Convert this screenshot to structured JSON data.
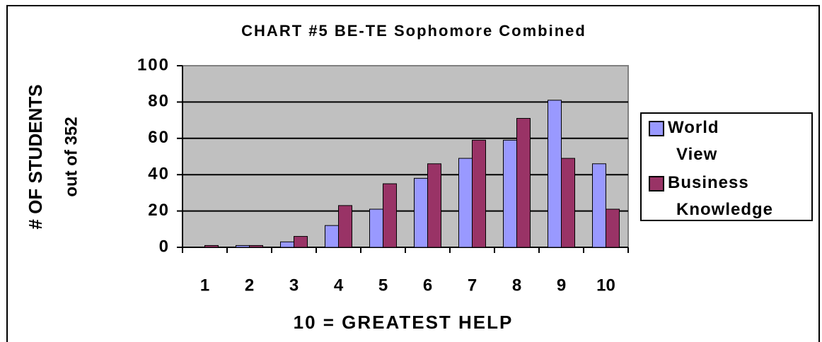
{
  "chart_data": {
    "type": "bar",
    "title": "CHART #5 BE-TE Sophomore Combined",
    "y_label": [
      "# OF STUDENTS",
      "out of 352"
    ],
    "x_label": "10 = GREATEST HELP",
    "categories": [
      "1",
      "2",
      "3",
      "4",
      "5",
      "6",
      "7",
      "8",
      "9",
      "10"
    ],
    "series": [
      {
        "name": "World View",
        "color": "#9999ff",
        "values": [
          0,
          1,
          3,
          12,
          21,
          38,
          49,
          59,
          81,
          46
        ]
      },
      {
        "name": "Business Knowledge",
        "color": "#993366",
        "values": [
          1,
          1,
          6,
          23,
          35,
          46,
          59,
          71,
          49,
          21
        ]
      }
    ],
    "ylim": [
      0,
      100
    ],
    "yticks": [
      0,
      20,
      40,
      60,
      80,
      100
    ],
    "grid": true,
    "legend": "right"
  }
}
